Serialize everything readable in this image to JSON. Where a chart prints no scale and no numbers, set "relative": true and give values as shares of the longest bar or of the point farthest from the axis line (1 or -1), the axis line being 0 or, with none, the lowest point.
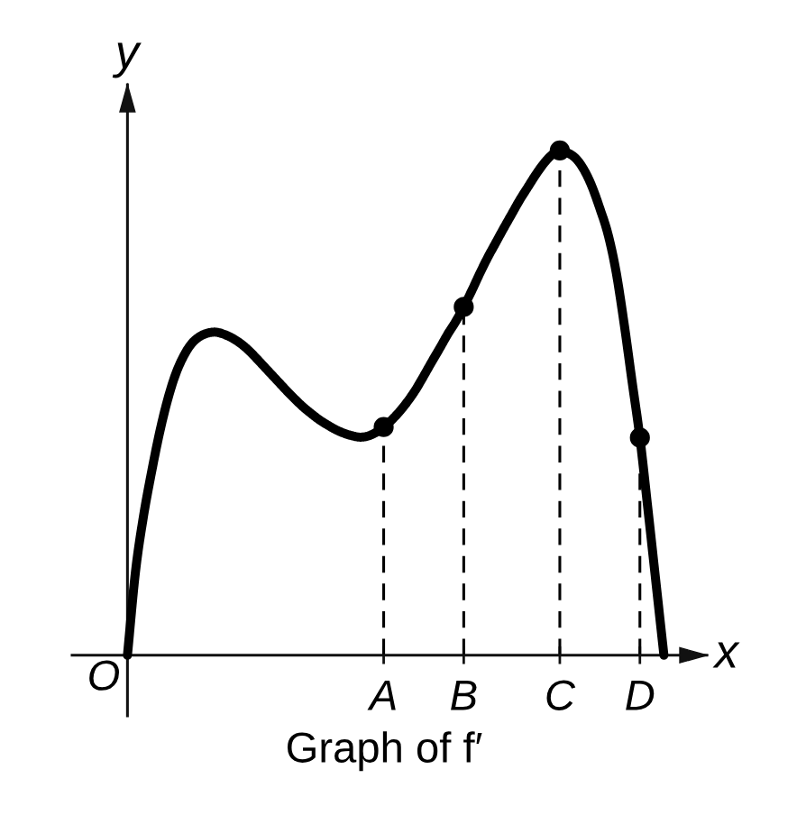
{
  "chart_data": {
    "type": "line",
    "title": "Graph of f′",
    "xlabel": "x",
    "ylabel": "y",
    "annotations": [
      "O"
    ],
    "relative": true,
    "tick_labels": "x",
    "categories": [
      null,
      null,
      null,
      null,
      null,
      null,
      null,
      null,
      null,
      null,
      null,
      null,
      null,
      null,
      null,
      null,
      null,
      null,
      null,
      null,
      null,
      null,
      null,
      null,
      null,
      null,
      null,
      null,
      null,
      null,
      null,
      null,
      "A",
      null,
      null,
      null,
      null,
      null,
      null,
      null,
      null,
      null,
      "B",
      null,
      null,
      null,
      null,
      null,
      null,
      null,
      null,
      null,
      null,
      null,
      "C",
      null,
      null,
      null,
      null,
      null,
      null,
      null,
      null,
      null,
      "D",
      null,
      null,
      null
    ],
    "series": [
      {
        "color": "#000000",
        "values": [
          0.0,
          0.165,
          0.275,
          0.362,
          0.44,
          0.505,
          0.556,
          0.592,
          0.617,
          0.631,
          0.638,
          0.64,
          0.636,
          0.629,
          0.619,
          0.606,
          0.59,
          0.573,
          0.556,
          0.539,
          0.522,
          0.506,
          0.491,
          0.478,
          0.466,
          0.456,
          0.447,
          0.44,
          0.435,
          0.432,
          0.434,
          0.441,
          0.452,
          0.466,
          0.483,
          0.503,
          0.526,
          0.553,
          0.581,
          0.608,
          0.636,
          0.661,
          0.69,
          0.722,
          0.756,
          0.788,
          0.817,
          0.846,
          0.874,
          0.902,
          0.927,
          0.952,
          0.974,
          0.991,
          1.0,
          0.995,
          0.984,
          0.962,
          0.929,
          0.885,
          0.835,
          0.762,
          0.66,
          0.545,
          0.431,
          0.29,
          0.145,
          0.0
        ]
      },
      {
        "type": "lollipop",
        "color": "#000000",
        "marker": "circle",
        "line_style": "dashed",
        "values": [
          null,
          null,
          null,
          null,
          null,
          null,
          null,
          null,
          null,
          null,
          null,
          null,
          null,
          null,
          null,
          null,
          null,
          null,
          null,
          null,
          null,
          null,
          null,
          null,
          null,
          null,
          null,
          null,
          null,
          null,
          null,
          null,
          0.452,
          null,
          null,
          null,
          null,
          null,
          null,
          null,
          null,
          null,
          0.69,
          null,
          null,
          null,
          null,
          null,
          null,
          null,
          null,
          null,
          null,
          null,
          1.0,
          null,
          null,
          null,
          null,
          null,
          null,
          null,
          null,
          null,
          0.431,
          null,
          null,
          null
        ]
      }
    ]
  }
}
